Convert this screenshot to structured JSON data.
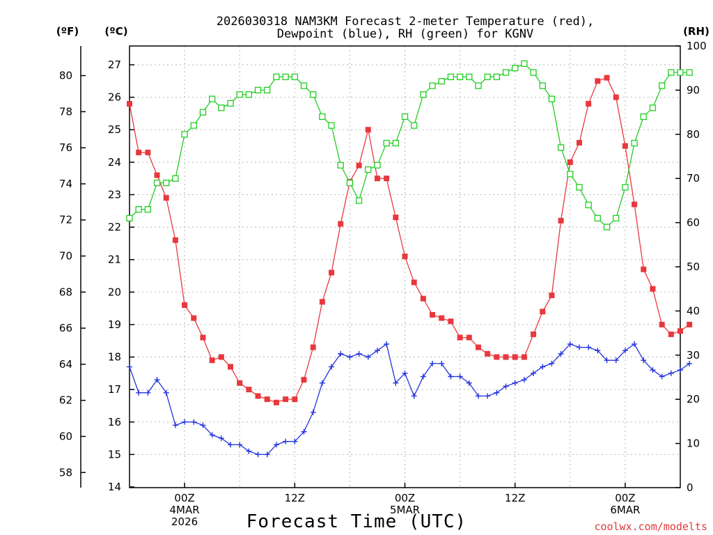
{
  "chart_data": {
    "type": "line",
    "title_line1": "2026030318 NAM3KM Forecast 2-meter Temperature (red),",
    "title_line2": "Dewpoint (blue), RH (green) for KGNV",
    "xlabel": "Forecast Time (UTC)",
    "credit": "coolwx.com/modelts",
    "units": {
      "f": "(ºF)",
      "c": "(ºC)",
      "rh": "(RH)"
    },
    "xlim": [
      -6,
      54
    ],
    "ylim_c": [
      14,
      27.5
    ],
    "ylim_rh": [
      0,
      100
    ],
    "c_ticks": [
      14,
      15,
      16,
      17,
      18,
      19,
      20,
      21,
      22,
      23,
      24,
      25,
      26,
      27
    ],
    "f_ticks": [
      58,
      60,
      62,
      64,
      66,
      68,
      70,
      72,
      74,
      76,
      78,
      80
    ],
    "rh_ticks": [
      0,
      10,
      20,
      30,
      40,
      50,
      60,
      70,
      80,
      90,
      100
    ],
    "x_ticks": [
      {
        "x": 0,
        "lines": [
          "00Z",
          "4MAR",
          "2026"
        ]
      },
      {
        "x": 12,
        "lines": [
          "12Z"
        ]
      },
      {
        "x": 24,
        "lines": [
          "00Z",
          "5MAR"
        ]
      },
      {
        "x": 36,
        "lines": [
          "12Z"
        ]
      },
      {
        "x": 48,
        "lines": [
          "00Z",
          "6MAR"
        ]
      }
    ],
    "x_grid": [
      0,
      6,
      12,
      18,
      24,
      30,
      36,
      42,
      48
    ],
    "colors": {
      "temperature": "#e8383d",
      "dewpoint": "#2233dd",
      "rh": "#22cc22"
    },
    "series": [
      {
        "name": "Temperature",
        "axis": "C",
        "marker": "filled-square",
        "values": [
          25.8,
          24.3,
          24.3,
          23.6,
          22.9,
          21.6,
          19.6,
          19.2,
          18.6,
          17.9,
          18.0,
          17.7,
          17.2,
          17.0,
          16.8,
          16.7,
          16.6,
          16.7,
          16.7,
          17.3,
          18.3,
          19.7,
          20.6,
          22.1,
          23.4,
          23.9,
          25.0,
          23.5,
          23.5,
          22.3,
          21.1,
          20.3,
          19.8,
          19.3,
          19.2,
          19.1,
          18.6,
          18.6,
          18.3,
          18.1,
          18.0,
          18.0,
          18.0,
          18.0,
          18.7,
          19.4,
          19.9,
          22.2,
          24.0,
          24.6,
          25.8,
          26.5,
          26.6,
          26.0,
          24.5,
          22.7,
          20.7,
          20.1,
          19.0,
          18.7,
          18.8,
          19.0
        ]
      },
      {
        "name": "Dewpoint",
        "axis": "C",
        "marker": "plus",
        "values": [
          17.7,
          16.9,
          16.9,
          17.3,
          16.9,
          15.9,
          16.0,
          16.0,
          15.9,
          15.6,
          15.5,
          15.3,
          15.3,
          15.1,
          15.0,
          15.0,
          15.3,
          15.4,
          15.4,
          15.7,
          16.3,
          17.2,
          17.7,
          18.1,
          18.0,
          18.1,
          18.0,
          18.2,
          18.4,
          17.2,
          17.5,
          16.8,
          17.4,
          17.8,
          17.8,
          17.4,
          17.4,
          17.2,
          16.8,
          16.8,
          16.9,
          17.1,
          17.2,
          17.3,
          17.5,
          17.7,
          17.8,
          18.1,
          18.4,
          18.3,
          18.3,
          18.2,
          17.9,
          17.9,
          18.2,
          18.4,
          17.9,
          17.6,
          17.4,
          17.5,
          17.6,
          17.8
        ]
      },
      {
        "name": "RH",
        "axis": "RH",
        "marker": "open-square",
        "values": [
          61,
          63,
          63,
          69,
          69,
          70,
          80,
          82,
          85,
          88,
          86,
          87,
          89,
          89,
          90,
          90,
          93,
          93,
          93,
          91,
          89,
          84,
          82,
          73,
          69,
          65,
          72,
          73,
          78,
          78,
          84,
          82,
          89,
          91,
          92,
          93,
          93,
          93,
          91,
          93,
          93,
          94,
          95,
          96,
          94,
          91,
          88,
          77,
          71,
          68,
          64,
          61,
          59,
          61,
          68,
          78,
          84,
          86,
          91,
          94,
          94,
          94
        ]
      }
    ]
  }
}
